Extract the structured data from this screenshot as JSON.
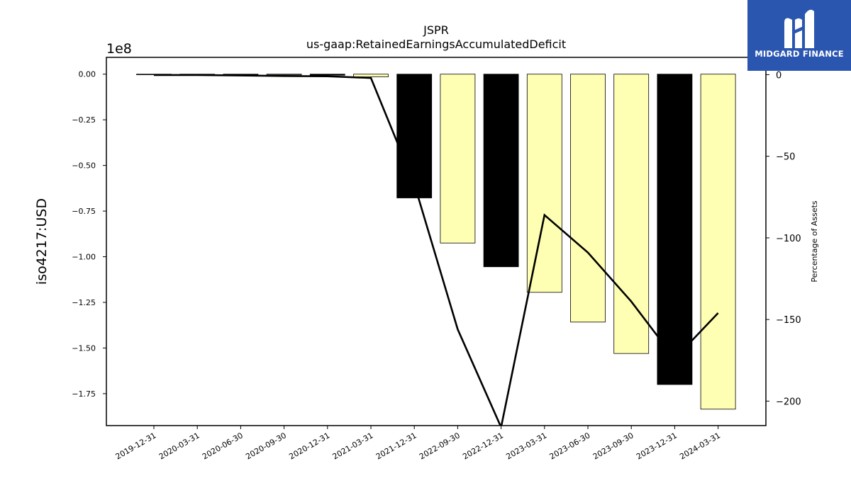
{
  "chart_data": {
    "type": "bar",
    "title": "JSPR",
    "subtitle": "us-gaap:RetainedEarningsAccumulatedDeficit",
    "ylabel": "iso4217:USD",
    "y_offset_label": "1e8",
    "y2label": "Percentage of Assets",
    "categories": [
      "2019-12-31",
      "2020-03-31",
      "2020-06-30",
      "2020-09-30",
      "2020-12-31",
      "2021-03-31",
      "2021-12-31",
      "2022-09-30",
      "2022-12-31",
      "2023-03-31",
      "2023-06-30",
      "2023-09-30",
      "2023-12-31",
      "2024-03-31"
    ],
    "series": [
      {
        "axis": "left",
        "type": "bar",
        "values": [
          -100000,
          -150000,
          -250000,
          -400000,
          -600000,
          -1500000,
          -67800000,
          -92500000,
          -105500000,
          -119500000,
          -135800000,
          -153000000,
          -170000000,
          -183500000
        ],
        "colors": [
          "#000000",
          "#ffffb3",
          "#000000",
          "#ffffb3",
          "#000000",
          "#ffffb3",
          "#000000",
          "#ffffb3",
          "#000000",
          "#ffffb3",
          "#ffffb3",
          "#ffffb3",
          "#000000",
          "#ffffb3"
        ]
      },
      {
        "axis": "right",
        "type": "line",
        "color": "#000000",
        "values": [
          -0.2,
          -0.2,
          -0.5,
          -0.8,
          -1.0,
          -2.0,
          -67,
          -156,
          -216,
          -86,
          -109,
          -139,
          -174,
          -146
        ]
      }
    ],
    "yticks": [
      0,
      -0.25,
      -0.5,
      -0.75,
      -1.0,
      -1.25,
      -1.5,
      -1.75
    ],
    "ytick_labels": [
      "0.00",
      "−0.25",
      "−0.50",
      "−0.75",
      "−1.00",
      "−1.25",
      "−1.50",
      "−1.75"
    ],
    "ylim": [
      -192500000,
      9200000
    ],
    "y2ticks": [
      0,
      -50,
      -100,
      -150,
      -200
    ],
    "y2tick_labels": [
      "0",
      "−50",
      "−100",
      "−150",
      "−200"
    ],
    "y2lim": [
      -215,
      10.6
    ],
    "grid": false
  },
  "logo": {
    "text": "MIDGARD FINANCE"
  }
}
